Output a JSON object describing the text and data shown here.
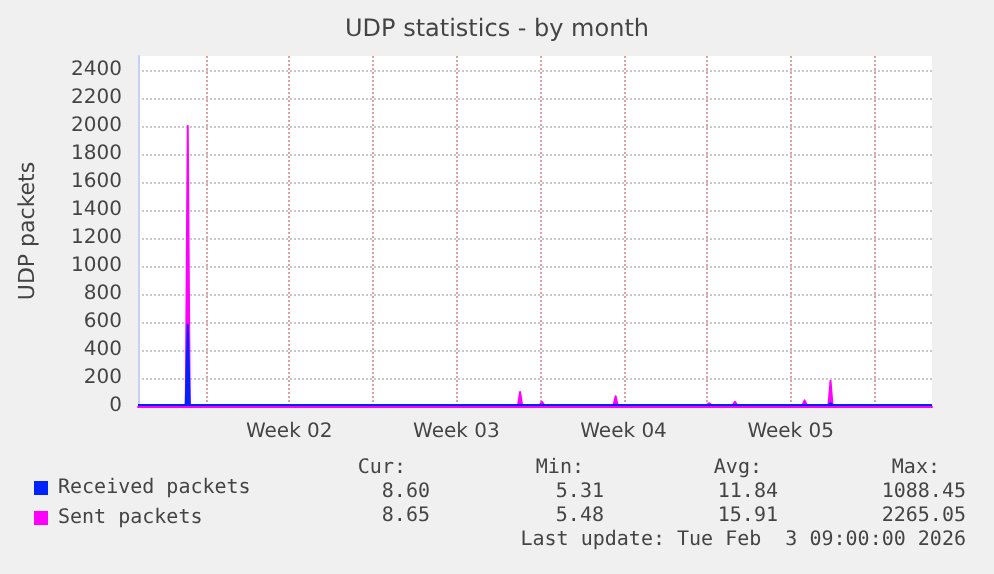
{
  "chart_data": {
    "type": "area",
    "title": "UDP statistics - by month",
    "ylabel": "UDP packets",
    "xlim": [
      "2026-01-02T04:00",
      "2026-02-04T10:00"
    ],
    "xticks": [
      {
        "value": "2026-01-05",
        "label": null
      },
      {
        "value": "2026-01-08T12:00",
        "label": "Week 02"
      },
      {
        "value": "2026-01-12",
        "label": null
      },
      {
        "value": "2026-01-15T12:00",
        "label": "Week 03"
      },
      {
        "value": "2026-01-19",
        "label": null
      },
      {
        "value": "2026-01-22T12:00",
        "label": "Week 04"
      },
      {
        "value": "2026-01-26",
        "label": null
      },
      {
        "value": "2026-01-29T12:00",
        "label": "Week 05"
      },
      {
        "value": "2026-02-02",
        "label": null
      }
    ],
    "ylim": [
      0,
      2500
    ],
    "yticks": [
      0,
      200,
      400,
      600,
      800,
      1000,
      1200,
      1400,
      1600,
      1800,
      2000,
      2200,
      2400
    ],
    "grid": true,
    "legend": "bottom left",
    "series": [
      {
        "name": "Received packets",
        "color": "#0022ff",
        "x": [
          "2026-01-02T04:00",
          "2026-01-04T04:00",
          "2026-01-04T06:00",
          "2026-01-04T08:00",
          "2026-01-31T02:00",
          "2026-01-31T04:00",
          "2026-01-31T06:00",
          "2026-02-04T10:00"
        ],
        "values": [
          8,
          8,
          580,
          8,
          8,
          20,
          8,
          8
        ]
      },
      {
        "name": "Sent packets",
        "color": "#ff00ff",
        "x": [
          "2026-01-02T04:00",
          "2026-01-04T04:00",
          "2026-01-04T06:00",
          "2026-01-04T08:00",
          "2026-01-18T02:00",
          "2026-01-18T04:00",
          "2026-01-18T06:00",
          "2026-01-19T00:00",
          "2026-01-19T02:00",
          "2026-01-19T04:00",
          "2026-01-22T02:00",
          "2026-01-22T04:00",
          "2026-01-22T06:00",
          "2026-01-26T00:00",
          "2026-01-26T02:00",
          "2026-01-26T04:00",
          "2026-01-27T02:00",
          "2026-01-27T04:00",
          "2026-01-27T06:00",
          "2026-01-30T00:00",
          "2026-01-30T02:00",
          "2026-01-30T04:00",
          "2026-01-31T02:00",
          "2026-01-31T04:00",
          "2026-01-31T06:00",
          "2026-02-04T10:00"
        ],
        "values": [
          8,
          8,
          2000,
          8,
          8,
          100,
          8,
          8,
          30,
          8,
          8,
          70,
          8,
          8,
          20,
          8,
          8,
          30,
          8,
          8,
          40,
          8,
          8,
          180,
          8,
          8
        ]
      }
    ],
    "annotations": [
      "Cur:",
      "Min:",
      "Avg:",
      "Max:",
      "8.60",
      "5.31",
      "11.84",
      "1088.45",
      "8.65",
      "5.48",
      "15.91",
      "2265.05",
      "Last update: Tue Feb  3 09:00:00 2026"
    ]
  }
}
